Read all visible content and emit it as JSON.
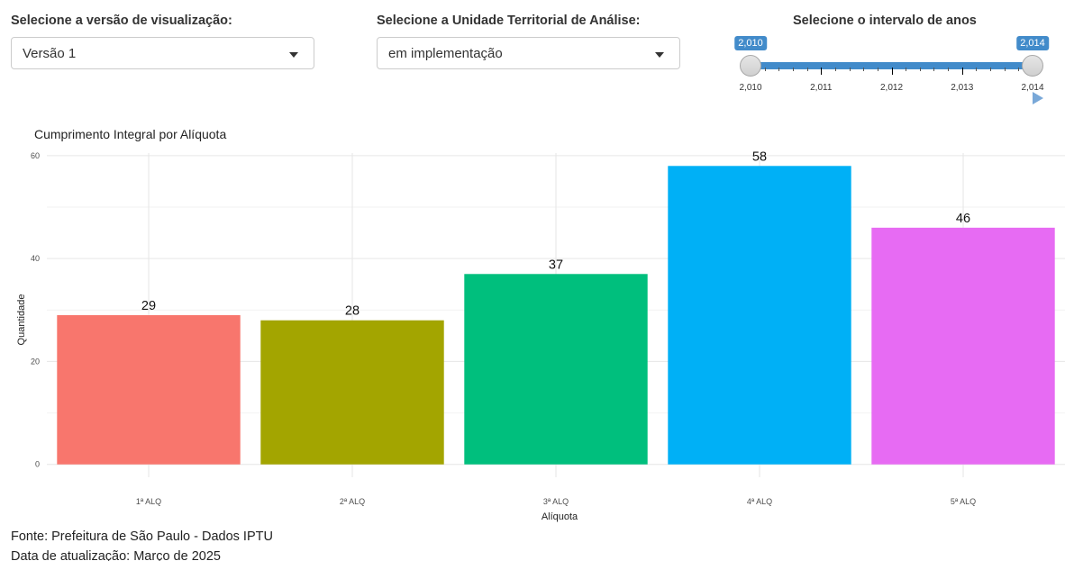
{
  "controls": {
    "version": {
      "label": "Selecione a versão de visualização:",
      "selected": "Versão 1"
    },
    "territorial_unit": {
      "label": "Selecione a Unidade Territorial de Análise:",
      "selected": "em implementação"
    },
    "year_range": {
      "label": "Selecione o intervalo de anos",
      "min": 2010,
      "max": 2014,
      "from": 2010,
      "to": 2014,
      "from_label": "2,010",
      "to_label": "2,014",
      "tick_labels": [
        "2,010",
        "2,011",
        "2,012",
        "2,013",
        "2,014"
      ],
      "play_icon": "play-icon"
    }
  },
  "chart_data": {
    "type": "bar",
    "title": "Cumprimento Integral por Alíquota",
    "xlabel": "Alíquota",
    "ylabel": "Quantidade",
    "categories": [
      "1ª ALQ",
      "2ª ALQ",
      "3ª ALQ",
      "4ª ALQ",
      "5ª ALQ"
    ],
    "values": [
      29,
      28,
      37,
      58,
      46
    ],
    "data_labels": [
      "29",
      "28",
      "37",
      "58",
      "46"
    ],
    "colors": [
      "#F8766D",
      "#A3A500",
      "#00BF7D",
      "#00B0F6",
      "#E76BF3"
    ],
    "yticks": [
      0,
      20,
      40,
      60
    ],
    "ytick_labels": [
      "0",
      "20",
      "40",
      "60"
    ],
    "ylim": [
      -2.5,
      60.5
    ],
    "grid": true,
    "legend": "none"
  },
  "footer": {
    "source": "Fonte: Prefeitura de São Paulo - Dados IPTU",
    "updated": "Data de atualização: Março de 2025"
  }
}
